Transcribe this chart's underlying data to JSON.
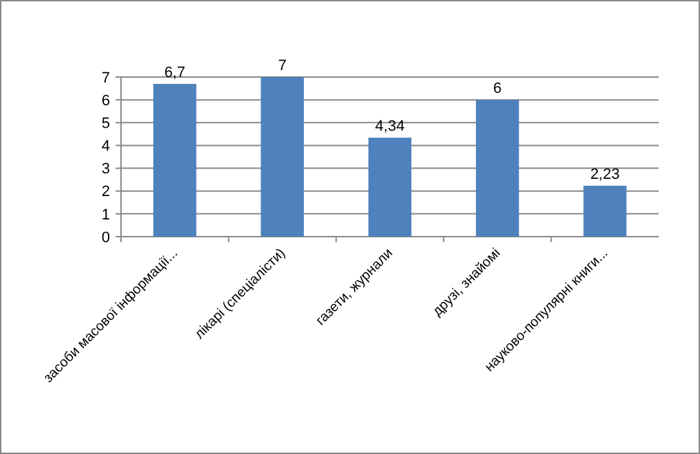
{
  "chart_data": {
    "type": "bar",
    "categories": [
      "засоби масової інформації...",
      "лікарі (спеціалісти)",
      "газети, журнали",
      "друзі, знайомі",
      "науково-популярні книги..."
    ],
    "values": [
      6.7,
      7,
      4.34,
      6,
      2.23
    ],
    "value_labels": [
      "6,7",
      "7",
      "4,34",
      "6",
      "2,23"
    ],
    "color": "#4f81bd",
    "ylim": [
      0,
      7
    ],
    "yticks": [
      0,
      1,
      2,
      3,
      4,
      5,
      6,
      7
    ],
    "grid": "y"
  }
}
